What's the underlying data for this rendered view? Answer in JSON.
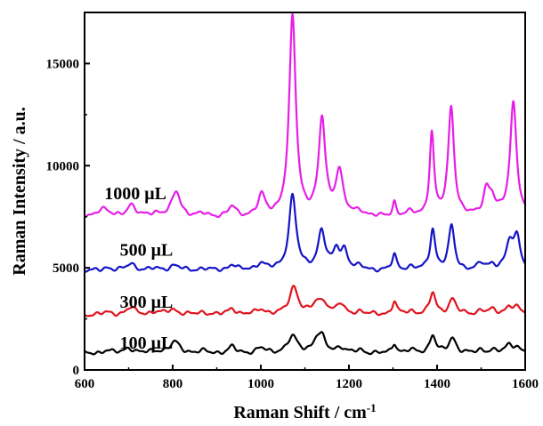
{
  "chart_data": {
    "type": "line",
    "title": "",
    "xlabel": "Raman Shift / cm",
    "xlabel_superscript": "-1",
    "ylabel": "Raman Intensity / a.u.",
    "xlim": [
      600,
      1600
    ],
    "ylim": [
      0,
      17500
    ],
    "x_ticks": [
      600,
      800,
      1000,
      1200,
      1400,
      1600
    ],
    "y_ticks": [
      0,
      5000,
      10000,
      15000
    ],
    "grid": false,
    "legend": "inline labels",
    "series": [
      {
        "name": "100 μL",
        "color": "#000000",
        "baseline": 800,
        "peaks": [
          [
            650,
            150,
            12
          ],
          [
            700,
            280,
            12
          ],
          [
            760,
            120,
            15
          ],
          [
            805,
            550,
            14
          ],
          [
            870,
            100,
            14
          ],
          [
            935,
            320,
            10
          ],
          [
            1000,
            250,
            12
          ],
          [
            1072,
            800,
            14
          ],
          [
            1128,
            650,
            12
          ],
          [
            1140,
            520,
            10
          ],
          [
            1180,
            300,
            10
          ],
          [
            1225,
            150,
            12
          ],
          [
            1303,
            500,
            6
          ],
          [
            1340,
            150,
            12
          ],
          [
            1390,
            900,
            8
          ],
          [
            1435,
            750,
            10
          ],
          [
            1500,
            150,
            10
          ],
          [
            1525,
            150,
            10
          ],
          [
            1563,
            350,
            10
          ],
          [
            1580,
            300,
            12
          ]
        ]
      },
      {
        "name": "300 μL",
        "color": "#e0141e",
        "baseline": 2700,
        "peaks": [
          [
            650,
            100,
            12
          ],
          [
            705,
            350,
            12
          ],
          [
            760,
            120,
            14
          ],
          [
            800,
            250,
            14
          ],
          [
            870,
            100,
            14
          ],
          [
            935,
            300,
            10
          ],
          [
            1000,
            250,
            12
          ],
          [
            1075,
            1350,
            12
          ],
          [
            1128,
            550,
            12
          ],
          [
            1145,
            450,
            10
          ],
          [
            1180,
            500,
            10
          ],
          [
            1225,
            150,
            12
          ],
          [
            1303,
            650,
            6
          ],
          [
            1340,
            150,
            12
          ],
          [
            1390,
            1050,
            8
          ],
          [
            1435,
            750,
            10
          ],
          [
            1500,
            200,
            10
          ],
          [
            1525,
            200,
            10
          ],
          [
            1563,
            350,
            10
          ],
          [
            1580,
            300,
            12
          ]
        ]
      },
      {
        "name": "500 μL",
        "color": "#1414c8",
        "baseline": 4850,
        "peaks": [
          [
            650,
            150,
            12
          ],
          [
            705,
            350,
            12
          ],
          [
            760,
            100,
            14
          ],
          [
            805,
            250,
            14
          ],
          [
            870,
            100,
            14
          ],
          [
            935,
            300,
            10
          ],
          [
            1000,
            350,
            12
          ],
          [
            1072,
            3650,
            10
          ],
          [
            1138,
            1900,
            10
          ],
          [
            1172,
            900,
            9
          ],
          [
            1190,
            900,
            9
          ],
          [
            1225,
            150,
            12
          ],
          [
            1303,
            750,
            6
          ],
          [
            1340,
            150,
            12
          ],
          [
            1390,
            2000,
            7
          ],
          [
            1433,
            2150,
            8
          ],
          [
            1500,
            300,
            10
          ],
          [
            1525,
            250,
            10
          ],
          [
            1565,
            1300,
            10
          ],
          [
            1582,
            1500,
            9
          ]
        ]
      },
      {
        "name": "1000 μL",
        "color": "#e61ee6",
        "baseline": 7450,
        "peaks": [
          [
            640,
            450,
            16
          ],
          [
            705,
            600,
            12
          ],
          [
            760,
            200,
            14
          ],
          [
            808,
            1250,
            12
          ],
          [
            870,
            150,
            14
          ],
          [
            935,
            500,
            10
          ],
          [
            1002,
            1000,
            10
          ],
          [
            1072,
            9800,
            9
          ],
          [
            1139,
            4700,
            9
          ],
          [
            1178,
            2200,
            10
          ],
          [
            1225,
            250,
            12
          ],
          [
            1303,
            700,
            5
          ],
          [
            1340,
            200,
            12
          ],
          [
            1388,
            4000,
            6
          ],
          [
            1432,
            5400,
            8
          ],
          [
            1512,
            1200,
            9
          ],
          [
            1525,
            700,
            10
          ],
          [
            1573,
            5600,
            9
          ]
        ]
      }
    ],
    "series_label_positions": [
      {
        "name": "100 μL",
        "x": 680,
        "y": 1050
      },
      {
        "name": "300 μL",
        "x": 680,
        "y": 3050
      },
      {
        "name": "500 μL",
        "x": 680,
        "y": 5600
      },
      {
        "name": "1000 μL",
        "x": 645,
        "y": 8350
      }
    ]
  }
}
